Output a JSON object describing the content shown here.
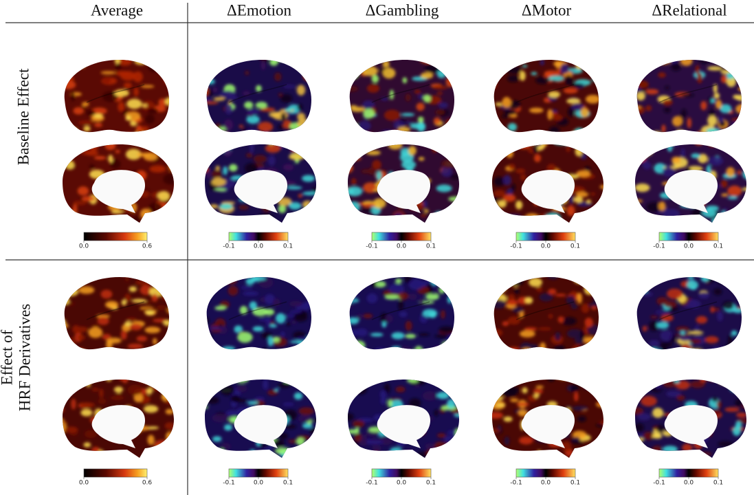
{
  "headers": [
    "Average",
    "ΔEmotion",
    "ΔGambling",
    "ΔMotor",
    "ΔRelational"
  ],
  "rows": [
    {
      "label": [
        "Baseline Effect"
      ],
      "colorbars": [
        [
          "0.0",
          "0.6"
        ],
        [
          "-0.1",
          "0.0",
          "0.1"
        ],
        [
          "-0.1",
          "0.0",
          "0.1"
        ],
        [
          "-0.1",
          "0.0",
          "0.1"
        ],
        [
          "-0.1",
          "0.0",
          "0.1"
        ]
      ]
    },
    {
      "label": [
        "Effect of",
        "HRF Derivatives"
      ],
      "colorbars": [
        [
          "0.0",
          "0.6"
        ],
        [
          "-0.1",
          "0.0",
          "0.1"
        ],
        [
          "-0.1",
          "0.0",
          "0.1"
        ],
        [
          "-0.1",
          "0.0",
          "0.1"
        ],
        [
          "-0.1",
          "0.0",
          "0.1"
        ]
      ]
    }
  ]
}
